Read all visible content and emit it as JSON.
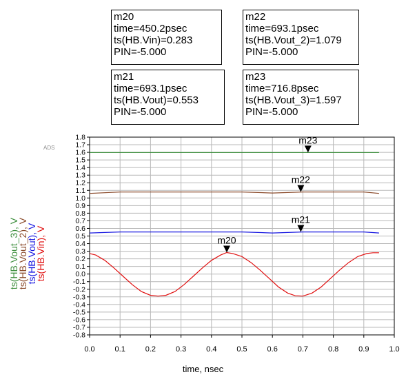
{
  "brand_label": "ADS",
  "marker_boxes": [
    {
      "id": "m20",
      "lines": [
        "m20",
        "time=450.2psec",
        "ts(HB.Vin)=0.283",
        "PIN=-5.000"
      ]
    },
    {
      "id": "m22",
      "lines": [
        "m22",
        "time=693.1psec",
        "ts(HB.Vout_2)=1.079",
        "PIN=-5.000"
      ]
    },
    {
      "id": "m21",
      "lines": [
        "m21",
        "time=693.1psec",
        "ts(HB.Vout)=0.553",
        "PIN=-5.000"
      ]
    },
    {
      "id": "m23",
      "lines": [
        "m23",
        "time=716.8psec",
        "ts(HB.Vout_3)=1.597",
        "PIN=-5.000"
      ]
    }
  ],
  "chart_data": {
    "type": "line",
    "xlabel": "time, nsec",
    "xlim": [
      0.0,
      1.0
    ],
    "ylim": [
      -0.8,
      1.8
    ],
    "x_ticks": [
      "0.0",
      "0.1",
      "0.2",
      "0.3",
      "0.4",
      "0.5",
      "0.6",
      "0.7",
      "0.8",
      "0.9",
      "1.0"
    ],
    "y_ticks": [
      "-0.8",
      "-0.7",
      "-0.6",
      "-0.5",
      "-0.4",
      "-0.3",
      "-0.2",
      "-0.1",
      "0.0",
      "0.1",
      "0.2",
      "0.3",
      "0.4",
      "0.5",
      "0.6",
      "0.7",
      "0.8",
      "0.9",
      "1.0",
      "1.1",
      "1.2",
      "1.3",
      "1.4",
      "1.5",
      "1.6",
      "1.7",
      "1.8"
    ],
    "grid": true,
    "ylabels": [
      {
        "text": "ts(HB.Vout_3), V",
        "color": "#3e8f3e"
      },
      {
        "text": "ts(HB.Vout_2), V",
        "color": "#8a4a2a"
      },
      {
        "text": "ts(HB.Vout), V",
        "color": "#1515e0"
      },
      {
        "text": "ts(HB.Vin), V",
        "color": "#e01010"
      }
    ],
    "series": [
      {
        "color": "#3e8f3e",
        "x": [
          0.0,
          0.95
        ],
        "y": [
          1.597,
          1.597
        ]
      },
      {
        "color": "#8a4a2a",
        "x": [
          0.0,
          0.1,
          0.2,
          0.3,
          0.4,
          0.5,
          0.6,
          0.7,
          0.8,
          0.9,
          0.95
        ],
        "y": [
          1.06,
          1.079,
          1.079,
          1.079,
          1.079,
          1.079,
          1.065,
          1.079,
          1.079,
          1.079,
          1.06
        ]
      },
      {
        "color": "#1515e0",
        "x": [
          0.0,
          0.1,
          0.2,
          0.3,
          0.4,
          0.5,
          0.6,
          0.7,
          0.8,
          0.9,
          0.95
        ],
        "y": [
          0.54,
          0.553,
          0.553,
          0.553,
          0.553,
          0.553,
          0.54,
          0.553,
          0.553,
          0.553,
          0.54
        ]
      },
      {
        "color": "#e01010",
        "x": [
          0.0,
          0.02,
          0.05,
          0.08,
          0.11,
          0.14,
          0.17,
          0.2,
          0.225,
          0.25,
          0.28,
          0.31,
          0.34,
          0.37,
          0.4,
          0.43,
          0.45,
          0.47,
          0.5,
          0.53,
          0.56,
          0.59,
          0.62,
          0.65,
          0.675,
          0.7,
          0.73,
          0.76,
          0.79,
          0.82,
          0.85,
          0.88,
          0.91,
          0.93,
          0.95
        ],
        "y": [
          0.27,
          0.25,
          0.18,
          0.08,
          -0.03,
          -0.14,
          -0.23,
          -0.28,
          -0.29,
          -0.28,
          -0.23,
          -0.14,
          -0.03,
          0.08,
          0.18,
          0.25,
          0.283,
          0.27,
          0.23,
          0.15,
          0.05,
          -0.06,
          -0.17,
          -0.25,
          -0.285,
          -0.29,
          -0.25,
          -0.17,
          -0.06,
          0.05,
          0.15,
          0.23,
          0.27,
          0.28,
          0.28
        ]
      }
    ],
    "markers": [
      {
        "label": "m23",
        "x": 0.7168,
        "y": 1.597
      },
      {
        "label": "m22",
        "x": 0.6931,
        "y": 1.079
      },
      {
        "label": "m21",
        "x": 0.6931,
        "y": 0.553
      },
      {
        "label": "m20",
        "x": 0.4502,
        "y": 0.283
      }
    ]
  }
}
